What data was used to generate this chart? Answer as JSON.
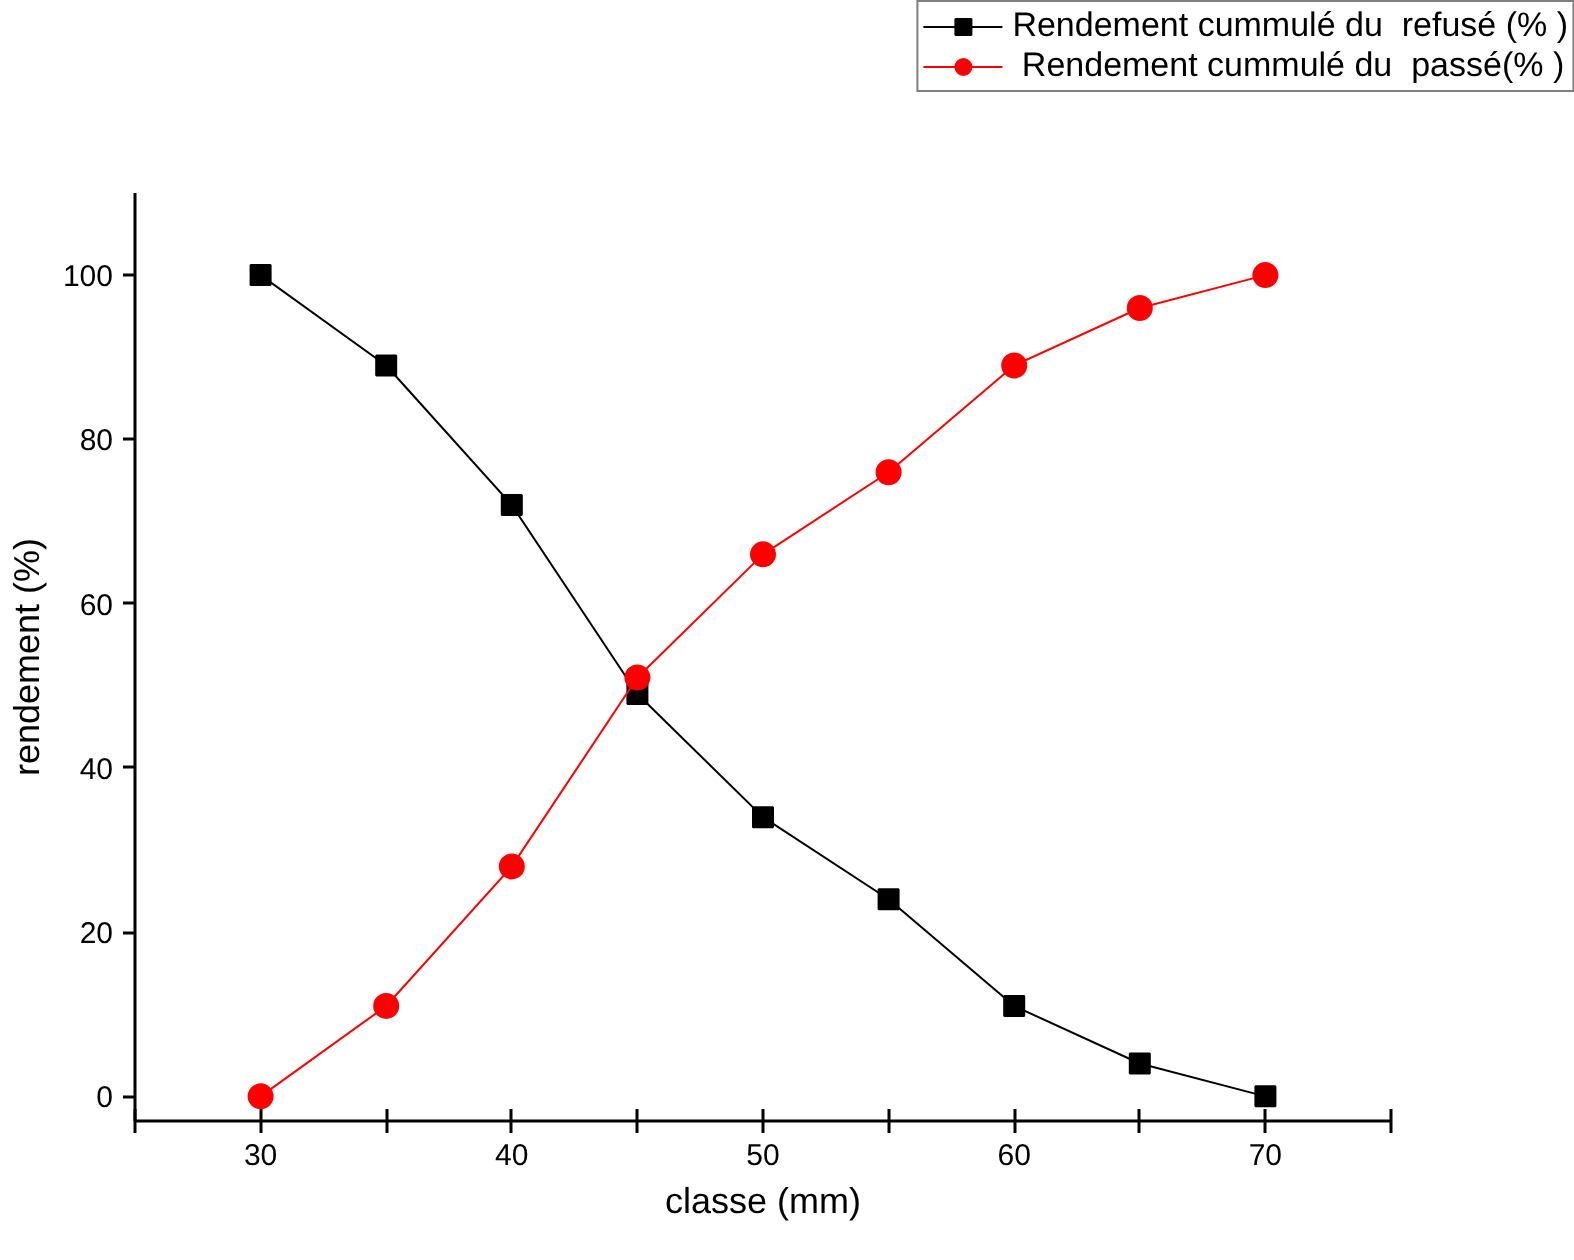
{
  "chart_data": {
    "type": "line",
    "xlabel": "classe (mm)",
    "ylabel": "rendement (%)",
    "x": [
      30,
      35,
      40,
      45,
      50,
      55,
      60,
      65,
      70
    ],
    "series": [
      {
        "name": "Rendement cummulé du  refusé (% )",
        "color": "#000000",
        "marker": "square",
        "values": [
          100,
          89,
          72,
          49,
          34,
          24,
          11,
          4,
          0
        ]
      },
      {
        "name": " Rendement cummulé du  passé(% )",
        "color": "#ff0000",
        "marker": "circle",
        "values": [
          0,
          11,
          28,
          51,
          66,
          76,
          89,
          96,
          100
        ]
      }
    ],
    "xlim": [
      25,
      75
    ],
    "ylim": [
      -3,
      110
    ],
    "xticks": [
      {
        "value": 25,
        "label": null
      },
      30,
      {
        "value": 35,
        "label": null
      },
      40,
      {
        "value": 45,
        "label": null
      },
      50,
      {
        "value": 55,
        "label": null
      },
      60,
      {
        "value": 65,
        "label": null
      },
      70,
      {
        "value": 75,
        "label": null
      }
    ],
    "yticks": [
      0,
      20,
      40,
      60,
      80,
      100
    ],
    "grid": false,
    "legend": "top right",
    "line_style": "solid"
  }
}
